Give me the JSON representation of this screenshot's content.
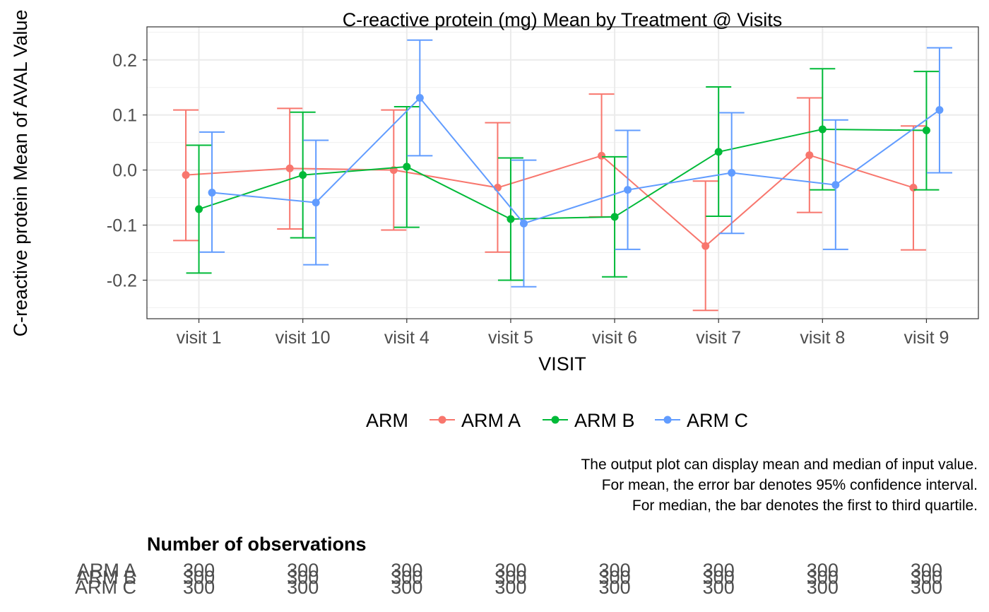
{
  "chart_data": {
    "type": "line",
    "title": "C-reactive protein (mg) Mean by Treatment @ Visits",
    "xlabel": "VISIT",
    "ylabel": "C-reactive protein Mean of AVAL Value",
    "categories": [
      "visit 1",
      "visit 10",
      "visit 4",
      "visit 5",
      "visit 6",
      "visit 7",
      "visit 8",
      "visit 9"
    ],
    "ylim": [
      -0.27,
      0.26
    ],
    "yticks": [
      0.2,
      0.1,
      0.0,
      -0.1,
      -0.2
    ],
    "ytick_labels": [
      "0.2",
      "0.1",
      "0.0",
      "-0.1",
      "-0.2"
    ],
    "grid": true,
    "legend": {
      "title": "ARM",
      "position": "bottom"
    },
    "series": [
      {
        "name": "ARM A",
        "color": "#F8766D",
        "values": [
          -0.009,
          0.003,
          0.0,
          -0.032,
          0.026,
          -0.138,
          0.027,
          -0.032
        ],
        "lower": [
          -0.128,
          -0.107,
          -0.109,
          -0.149,
          -0.085,
          -0.255,
          -0.077,
          -0.145
        ],
        "upper": [
          0.109,
          0.112,
          0.109,
          0.086,
          0.138,
          -0.02,
          0.131,
          0.08
        ]
      },
      {
        "name": "ARM B",
        "color": "#00BA38",
        "values": [
          -0.071,
          -0.009,
          0.006,
          -0.089,
          -0.085,
          0.033,
          0.074,
          0.072
        ],
        "lower": [
          -0.187,
          -0.123,
          -0.104,
          -0.2,
          -0.194,
          -0.084,
          -0.036,
          -0.036
        ],
        "upper": [
          0.045,
          0.105,
          0.115,
          0.022,
          0.024,
          0.151,
          0.184,
          0.179
        ]
      },
      {
        "name": "ARM C",
        "color": "#619CFF",
        "values": [
          -0.041,
          -0.059,
          0.131,
          -0.097,
          -0.036,
          -0.005,
          -0.027,
          0.109
        ],
        "lower": [
          -0.149,
          -0.172,
          0.026,
          -0.212,
          -0.144,
          -0.115,
          -0.144,
          -0.005
        ],
        "upper": [
          0.069,
          0.054,
          0.236,
          0.018,
          0.072,
          0.104,
          0.091,
          0.222
        ]
      }
    ],
    "footnote": [
      "The output plot can display mean and median of input value.",
      "For mean, the error bar denotes 95% confidence interval.",
      "For median, the bar denotes the first to third quartile."
    ],
    "table": {
      "title": "Number of observations",
      "rows": [
        {
          "label": "ARM A",
          "values": [
            300,
            300,
            300,
            300,
            300,
            300,
            300,
            300
          ]
        },
        {
          "label": "ARM B",
          "values": [
            300,
            300,
            300,
            300,
            300,
            300,
            300,
            300
          ]
        },
        {
          "label": "ARM C",
          "values": [
            300,
            300,
            300,
            300,
            300,
            300,
            300,
            300
          ]
        }
      ]
    }
  }
}
